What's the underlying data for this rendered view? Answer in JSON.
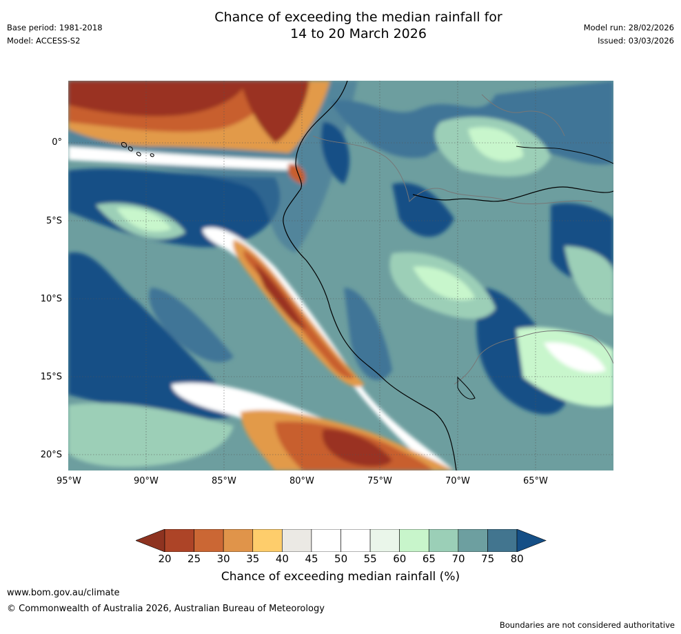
{
  "header": {
    "title_line1": "Chance of exceeding the median rainfall for",
    "title_line2": "14 to 20 March 2026",
    "base_period": "Base period: 1981-2018",
    "model": "Model: ACCESS-S2",
    "model_run": "Model run: 28/02/2026",
    "issued": "Issued: 03/03/2026"
  },
  "map": {
    "lat_labels": [
      "0°",
      "5°S",
      "10°S",
      "15°S",
      "20°S"
    ],
    "lon_labels": [
      "95°W",
      "90°W",
      "85°W",
      "80°W",
      "75°W",
      "70°W",
      "65°W"
    ],
    "palette": {
      "ocean_dark": "#154f86",
      "mid_blue": "#3f7597",
      "teal": "#6d9e9f",
      "light_teal": "#9ccfb7",
      "light_green": "#c8f6cc",
      "white": "#ffffff",
      "brown": "#9a3320",
      "rust": "#c85e2f",
      "orange": "#e29a4a",
      "yellow": "#fdd06d"
    }
  },
  "colorbar": {
    "ticks": [
      "20",
      "25",
      "30",
      "35",
      "40",
      "45",
      "50",
      "55",
      "60",
      "65",
      "70",
      "75",
      "80"
    ],
    "low_color": "#8e3320",
    "high_color": "#154f86",
    "colors": [
      "#ad4427",
      "#cb6734",
      "#e0944a",
      "#fecd6b",
      "#ebe9e4",
      "#ffffff",
      "#ffffff",
      "#eaf6ea",
      "#c8f5cb",
      "#9bcfb7",
      "#6d9fa0",
      "#42758f"
    ],
    "label": "Chance of exceeding median rainfall (%)"
  },
  "footer": {
    "website": "www.bom.gov.au/climate",
    "copyright": "© Commonwealth of Australia 2026, Australian Bureau of Meteorology",
    "disclaimer": "Boundaries are not considered authoritative"
  }
}
